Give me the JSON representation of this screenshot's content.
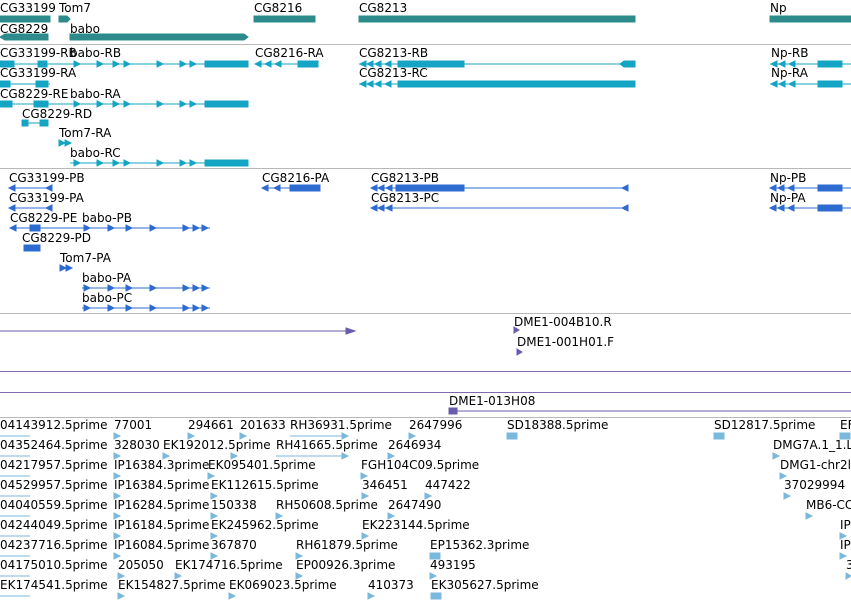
{
  "colors": {
    "gene": "#2e8b8b",
    "transcript_top": "#14a4c4",
    "transcript_mid": "#2e6bd0",
    "probe": "#6a5cad",
    "est": "#7ab8dc",
    "separator": "#b8b8b8"
  },
  "tracks": {
    "genes": [
      "CG33199",
      "Tom7",
      "CG8216",
      "CG8213",
      "Np",
      "CG8229",
      "babo"
    ],
    "transcripts_a": [
      "CG33199-RB",
      "babo-RB",
      "CG8216-RA",
      "CG8213-RB",
      "Np-RB",
      "CG33199-RA",
      "CG8213-RC",
      "Np-RA",
      "CG8229-RE",
      "babo-RA",
      "CG8229-RD",
      "Tom7-RA",
      "babo-RC"
    ],
    "transcripts_b": [
      "CG33199-PB",
      "CG8216-PA",
      "CG8213-PB",
      "Np-PB",
      "CG33199-PA",
      "CG8213-PC",
      "Np-PA",
      "CG8229-PE",
      "babo-PB",
      "CG8229-PD",
      "Tom7-PA",
      "babo-PA",
      "babo-PC"
    ],
    "probes": [
      "DME1-004B10.R",
      "DME1-001H01.F",
      "DME1-013H08"
    ],
    "ests": [
      "04143912.5prime",
      "77001",
      "294661",
      "201633",
      "RH36931.5prime",
      "2647996",
      "SD18388.5prime",
      "SD12817.5prime",
      "EF",
      "04352464.5prime",
      "328030",
      "EK192012.5prime",
      "RH41665.5prime",
      "2646934",
      "DMG7A.1_1.L",
      "04217957.5prime",
      "IP16384.3prime",
      "EK095401.5prime",
      "FGH104C09.5prime",
      "DMG1-chr2l",
      "04529957.5prime",
      "IP16384.5prime",
      "EK112615.5prime",
      "346451",
      "447422",
      "37029994",
      "04040559.5prime",
      "IP16284.5prime",
      "150338",
      "RH50608.5prime",
      "2647490",
      "MB6-CC",
      "04244049.5prime",
      "IP16184.5prime",
      "EK245962.5prime",
      "EK223144.5prime",
      "IP",
      "04237716.5prime",
      "IP16084.5prime",
      "367870",
      "RH61879.5prime",
      "EP15362.3prime",
      "IP",
      "04175010.5prime",
      "205050",
      "EK174716.5prime",
      "EP00926.3prime",
      "493195",
      "3",
      "EK174541.5prime",
      "EK154827.5prime",
      "EK069023.5prime",
      "410373",
      "EK305627.5prime"
    ]
  }
}
